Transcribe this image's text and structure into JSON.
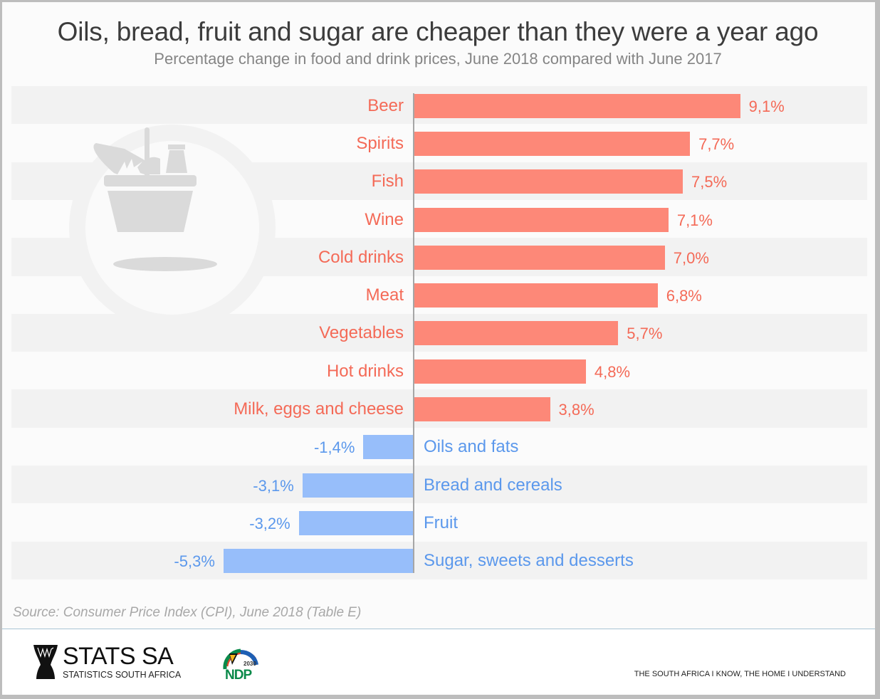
{
  "header": {
    "title": "Oils, bread, fruit and sugar are cheaper than they were a year ago",
    "subtitle": "Percentage change in food and drink prices, June 2018 compared with June 2017"
  },
  "chart_data": {
    "type": "bar",
    "orientation": "horizontal",
    "title": "Oils, bread, fruit and sugar are cheaper than they were a year ago",
    "subtitle": "Percentage change in food and drink prices, June 2018 compared with June 2017",
    "xlabel": "",
    "ylabel": "",
    "unit": "%",
    "decimal_separator": ",",
    "grid": false,
    "legend": "none",
    "categories": [
      "Beer",
      "Spirits",
      "Fish",
      "Wine",
      "Cold drinks",
      "Meat",
      "Vegetables",
      "Hot drinks",
      "Milk, eggs and cheese",
      "Oils and fats",
      "Bread and cereals",
      "Fruit",
      "Sugar, sweets and desserts"
    ],
    "values": [
      9.1,
      7.7,
      7.5,
      7.1,
      7.0,
      6.8,
      5.7,
      4.8,
      3.8,
      -1.4,
      -3.1,
      -3.2,
      -5.3
    ],
    "value_labels": [
      "9,1%",
      "7,7%",
      "7,5%",
      "7,1%",
      "7,0%",
      "6,8%",
      "5,7%",
      "4,8%",
      "3,8%",
      "-1,4%",
      "-3,1%",
      "-3,2%",
      "-5,3%"
    ],
    "xlim": [
      -5.3,
      9.1
    ],
    "colors": {
      "positive_bar": "#fd8878",
      "positive_text": "#f46a57",
      "negative_bar": "#97befa",
      "negative_text": "#5b98ec"
    }
  },
  "decoration": {
    "icon": "grocery-basket-icon"
  },
  "source": "Source: Consumer Price Index (CPI), June 2018 (Table E)",
  "footer": {
    "logo_main": "STATS SA",
    "logo_sub": "STATISTICS SOUTH AFRICA",
    "ndp_year": "2030",
    "ndp_text": "NDP",
    "tagline": "THE SOUTH AFRICA I KNOW, THE HOME I UNDERSTAND"
  }
}
